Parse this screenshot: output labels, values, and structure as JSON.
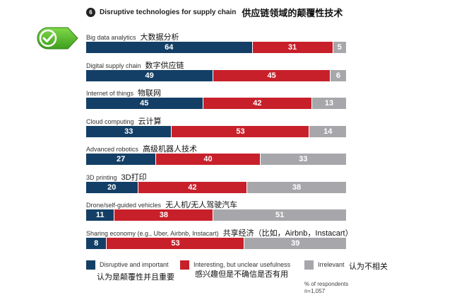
{
  "header": {
    "number": "6",
    "title": "Disruptive technologies for supply chain",
    "title_zh": "供应链领域的颠覆性技术"
  },
  "check_badge": {
    "icon": "checkmark-icon",
    "color": "#5cbf2a"
  },
  "colors": {
    "disruptive": "#133f66",
    "interesting": "#c8202a",
    "irrelevant": "#a7a7ab"
  },
  "chart_data": {
    "type": "bar",
    "orientation": "horizontal-stacked-100",
    "title": "Disruptive technologies for supply chain",
    "categories": [
      "Big data analytics",
      "Digital supply chain",
      "Internet of things",
      "Cloud computing",
      "Advanced robotics",
      "3D printing",
      "Drone/self-guided vehicles",
      "Sharing economy (e.g., Uber, Airbnb, Instacart)"
    ],
    "categories_zh": [
      "大数据分析",
      "数字供应链",
      "物联网",
      "云计算",
      "高级机器人技术",
      "3D打印",
      "无人机/无人驾驶汽车",
      "共享经济（比如，Airbnb，Instacart）"
    ],
    "series": [
      {
        "name": "Disruptive and important",
        "values": [
          64,
          49,
          45,
          33,
          27,
          20,
          11,
          8
        ]
      },
      {
        "name": "Interesting, but unclear usefulness",
        "values": [
          31,
          45,
          42,
          53,
          40,
          42,
          38,
          53
        ]
      },
      {
        "name": "Irrelevant",
        "values": [
          5,
          6,
          13,
          14,
          33,
          38,
          51,
          39
        ]
      }
    ],
    "xlim": [
      0,
      100
    ],
    "units": "% of respondents"
  },
  "legend": [
    {
      "label": "Disruptive and important",
      "label_zh": "认为是颠覆性并且重要"
    },
    {
      "label": "Interesting, but unclear usefulness",
      "label_zh": "感兴趣但是不确信是否有用"
    },
    {
      "label": "Irrelevant",
      "label_zh": "认为不相关"
    }
  ],
  "footnote": {
    "line1": "% of respondents",
    "line2": "n=1,057"
  }
}
